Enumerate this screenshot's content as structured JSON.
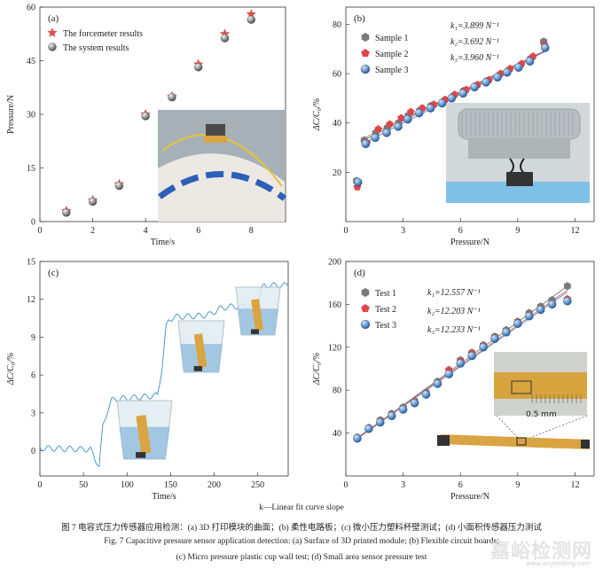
{
  "chart_data": [
    {
      "id": "a",
      "type": "scatter",
      "panel_label": "(a)",
      "xlabel": "Time/s",
      "ylabel": "Pressure/N",
      "xlim": [
        0,
        9.3
      ],
      "ylim": [
        0,
        60
      ],
      "xticks": [
        0,
        2,
        4,
        6,
        8
      ],
      "yticks": [
        0,
        15,
        30,
        45,
        60
      ],
      "legend": [
        "The forcemeter results",
        "The system results"
      ],
      "legend_position": "top-left",
      "series": [
        {
          "name": "The forcemeter results",
          "marker": "star",
          "color": "#d9534f",
          "x": [
            1,
            2,
            3,
            4,
            5,
            6,
            7,
            8
          ],
          "y": [
            3.0,
            6.0,
            10.5,
            30.0,
            35.0,
            44.0,
            52.5,
            58.0
          ]
        },
        {
          "name": "The system results",
          "marker": "sphere",
          "color": "#777777",
          "x": [
            1,
            2,
            3,
            4,
            5,
            6,
            7,
            8
          ],
          "y": [
            2.5,
            5.6,
            10.0,
            29.5,
            34.8,
            43.2,
            51.3,
            56.5
          ]
        }
      ]
    },
    {
      "id": "b",
      "type": "scatter",
      "panel_label": "(b)",
      "xlabel": "Pressure/N",
      "ylabel": "ΔC/C₀/%",
      "xlim": [
        0,
        13
      ],
      "ylim": [
        0,
        87
      ],
      "xticks": [
        0,
        3,
        6,
        9,
        12
      ],
      "yticks": [
        20,
        40,
        60,
        80
      ],
      "legend": [
        "Sample 1",
        "Sample 2",
        "Sample 3"
      ],
      "legend_position": "top-left",
      "annotations": [
        "k₁=3.899 N⁻¹",
        "k₂=3.692 N⁻¹",
        "k₃=3.960 N⁻¹"
      ],
      "series": [
        {
          "name": "Sample 1",
          "marker": "hexagon",
          "color": "#7a7a7a",
          "x": [
            0.6,
            1.0,
            1.6,
            2.2,
            2.8,
            3.3,
            3.9,
            4.5,
            5.1,
            5.6,
            6.2,
            6.8,
            7.4,
            8.0,
            8.5,
            9.1,
            9.7,
            10.4
          ],
          "y": [
            16.5,
            33.0,
            36.0,
            38.0,
            40.0,
            43.0,
            45.0,
            47.0,
            48.5,
            50.5,
            53.0,
            55.0,
            57.0,
            59.0,
            61.0,
            63.0,
            66.0,
            73.0
          ]
        },
        {
          "name": "Sample 2",
          "marker": "pentagon",
          "color": "#e0454a",
          "x": [
            0.6,
            1.1,
            1.7,
            2.3,
            2.9,
            3.4,
            4.0,
            4.6,
            5.2,
            5.7,
            6.3,
            6.9,
            7.5,
            8.1,
            8.6,
            9.2,
            9.8,
            10.4
          ],
          "y": [
            14.0,
            32.0,
            37.5,
            39.5,
            42.0,
            44.5,
            46.0,
            47.5,
            49.5,
            51.5,
            53.5,
            55.5,
            57.5,
            60.0,
            62.0,
            64.0,
            67.0,
            71.5
          ]
        },
        {
          "name": "Sample 3",
          "marker": "sphere",
          "color": "#3a7fc6",
          "x": [
            0.6,
            1.0,
            1.5,
            2.1,
            2.7,
            3.2,
            3.8,
            4.4,
            5.0,
            5.5,
            6.1,
            6.7,
            7.3,
            7.9,
            8.4,
            9.0,
            9.6,
            10.4
          ],
          "y": [
            16.0,
            31.5,
            34.0,
            36.0,
            38.5,
            41.5,
            44.0,
            46.0,
            48.0,
            50.0,
            52.0,
            54.5,
            56.5,
            58.5,
            60.5,
            62.5,
            65.0,
            70.5
          ]
        }
      ]
    },
    {
      "id": "c",
      "type": "line",
      "panel_label": "(c)",
      "xlabel": "Time/s",
      "ylabel": "ΔC/C₀/%",
      "xlim": [
        0,
        285
      ],
      "ylim": [
        -2,
        15
      ],
      "xticks": [
        0,
        50,
        100,
        150,
        200,
        250
      ],
      "yticks": [
        0,
        3,
        6,
        9,
        12,
        15
      ],
      "series": [
        {
          "name": "",
          "color": "#3a8fc4",
          "x": [
            0,
            58,
            63,
            68,
            72,
            78,
            82,
            90,
            125,
            135,
            140,
            145,
            148,
            155,
            185,
            195,
            200,
            205,
            208,
            215,
            250,
            254,
            258,
            285
          ],
          "y": [
            0.2,
            0.1,
            -0.6,
            -1.2,
            1.8,
            3.3,
            4.0,
            4.1,
            4.3,
            4.4,
            6.5,
            9.8,
            10.4,
            10.6,
            10.7,
            10.8,
            11.0,
            11.2,
            11.3,
            11.4,
            11.5,
            12.8,
            13.1,
            13.1
          ]
        }
      ]
    },
    {
      "id": "d",
      "type": "scatter",
      "panel_label": "(d)",
      "xlabel": "Pressure/N",
      "ylabel": "ΔC/C₀/%",
      "xlim": [
        0,
        13
      ],
      "ylim": [
        0,
        200
      ],
      "xticks": [
        0,
        3,
        6,
        9,
        12
      ],
      "yticks": [
        40,
        80,
        120,
        160,
        200
      ],
      "legend": [
        "Test 1",
        "Test 2",
        "Test 3"
      ],
      "legend_position": "top-left",
      "annotations": [
        "k₁=12.557 N⁻¹",
        "k₂=12.203 N⁻¹",
        "k₃=12.233 N⁻¹"
      ],
      "series": [
        {
          "name": "Test 1",
          "marker": "hexagon",
          "color": "#7a7a7a",
          "x": [
            0.6,
            1.2,
            1.8,
            2.4,
            3.0,
            3.6,
            4.2,
            4.8,
            5.4,
            6.0,
            6.6,
            7.2,
            7.8,
            8.4,
            9.0,
            9.6,
            10.2,
            10.8,
            11.6
          ],
          "y": [
            36,
            45,
            52,
            58,
            64,
            70,
            78,
            88,
            96,
            108,
            115,
            122,
            130,
            136,
            144,
            152,
            158,
            164,
            177
          ]
        },
        {
          "name": "Test 2",
          "marker": "pentagon",
          "color": "#e0454a",
          "x": [
            0.6,
            1.2,
            1.8,
            2.4,
            3.0,
            3.6,
            4.2,
            4.8,
            5.4,
            6.0,
            6.6,
            7.2,
            7.8,
            8.4,
            9.0,
            9.6,
            10.2,
            10.8,
            11.6
          ],
          "y": [
            35,
            44,
            51,
            57,
            63,
            69,
            77,
            87,
            99,
            107,
            114,
            121,
            129,
            135,
            143,
            150,
            156,
            161,
            165
          ]
        },
        {
          "name": "Test 3",
          "marker": "sphere",
          "color": "#3a7fc6",
          "x": [
            0.6,
            1.2,
            1.8,
            2.4,
            3.0,
            3.6,
            4.2,
            4.8,
            5.4,
            6.0,
            6.6,
            7.2,
            7.8,
            8.4,
            9.0,
            9.6,
            10.2,
            10.8,
            11.6
          ],
          "y": [
            35,
            44,
            50,
            56,
            62,
            68,
            76,
            86,
            95,
            105,
            112,
            120,
            128,
            134,
            142,
            149,
            155,
            160,
            163
          ]
        }
      ]
    }
  ],
  "inset_texts": {
    "scale": "0.5 mm"
  },
  "captions": {
    "k_note": "k—Linear fit curve slope",
    "zh": "图 7   电容式压力传感器应用检测：(a) 3D 打印模块的曲面；(b) 柔性电路板；(c) 微小压力塑料杯壁测试；(d) 小面积传感器压力测试",
    "en1": "Fig. 7   Capacitive pressure sensor application detection: (a) Surface of 3D printed module; (b) Flexible circuit boards;",
    "en2": "(c) Micro pressure plastic cup wall test; (d) Small area sensor pressure test"
  },
  "watermark": {
    "main": "嘉峪检测网",
    "sub": "www.anytesting.com"
  }
}
